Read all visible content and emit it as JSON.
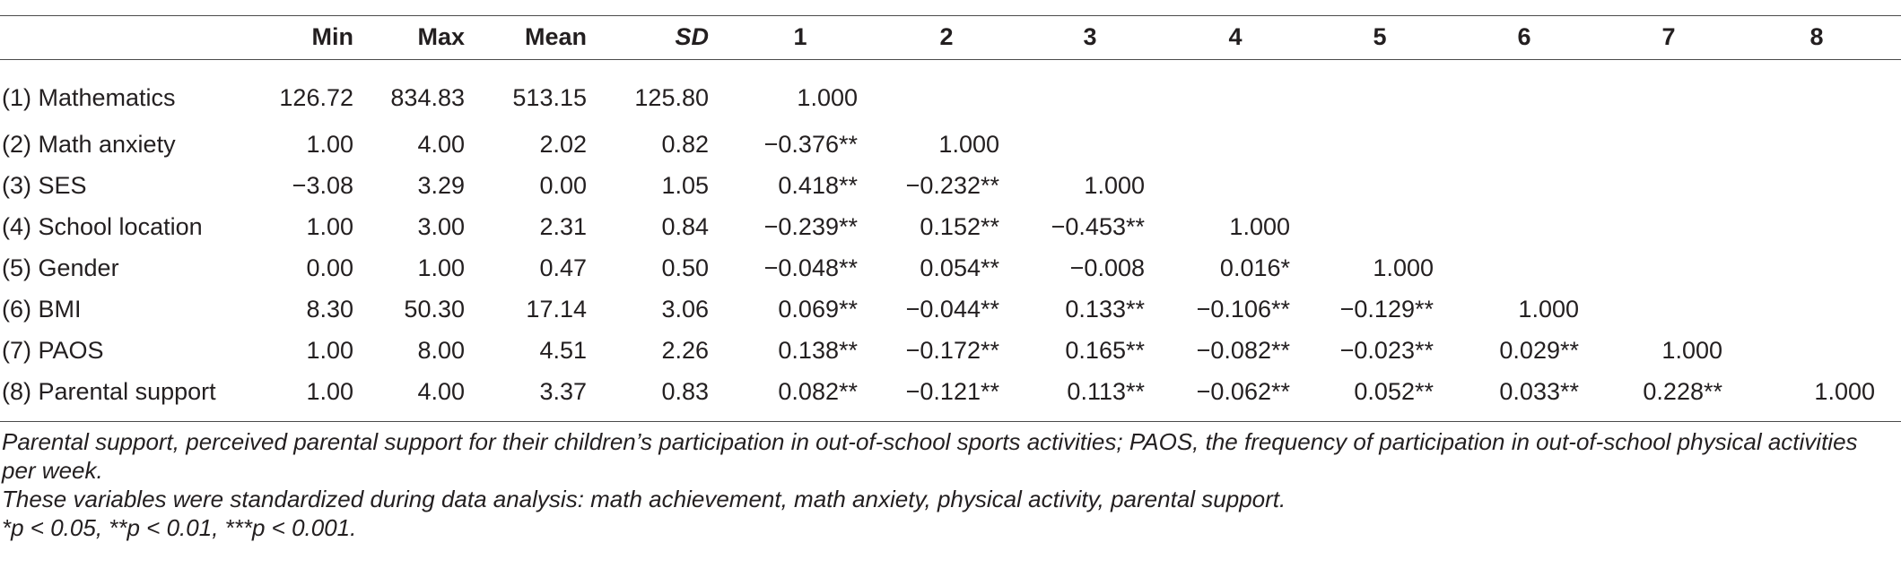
{
  "table": {
    "headers": [
      "",
      "Min",
      "Max",
      "Mean",
      "SD",
      "1",
      "2",
      "3",
      "4",
      "5",
      "6",
      "7",
      "8"
    ],
    "rows": [
      [
        "(1) Mathematics",
        "126.72",
        "834.83",
        "513.15",
        "125.80",
        "1.000",
        "",
        "",
        "",
        "",
        "",
        "",
        ""
      ],
      [
        "(2) Math anxiety",
        "1.00",
        "4.00",
        "2.02",
        "0.82",
        "−0.376**",
        "1.000",
        "",
        "",
        "",
        "",
        "",
        ""
      ],
      [
        "(3) SES",
        "−3.08",
        "3.29",
        "0.00",
        "1.05",
        "0.418**",
        "−0.232**",
        "1.000",
        "",
        "",
        "",
        "",
        ""
      ],
      [
        "(4) School location",
        "1.00",
        "3.00",
        "2.31",
        "0.84",
        "−0.239**",
        "0.152**",
        "−0.453**",
        "1.000",
        "",
        "",
        "",
        ""
      ],
      [
        "(5) Gender",
        "0.00",
        "1.00",
        "0.47",
        "0.50",
        "−0.048**",
        "0.054**",
        "−0.008",
        "0.016*",
        "1.000",
        "",
        "",
        ""
      ],
      [
        "(6) BMI",
        "8.30",
        "50.30",
        "17.14",
        "3.06",
        "0.069**",
        "−0.044**",
        "0.133**",
        "−0.106**",
        "−0.129**",
        "1.000",
        "",
        ""
      ],
      [
        "(7) PAOS",
        "1.00",
        "8.00",
        "4.51",
        "2.26",
        "0.138**",
        "−0.172**",
        "0.165**",
        "−0.082**",
        "−0.023**",
        "0.029**",
        "1.000",
        ""
      ],
      [
        "(8) Parental support",
        "1.00",
        "4.00",
        "3.37",
        "0.83",
        "0.082**",
        "−0.121**",
        "0.113**",
        "−0.062**",
        "0.052**",
        "0.033**",
        "0.228**",
        "1.000"
      ]
    ]
  },
  "notes": {
    "note1": "Parental support, perceived parental support for their children’s participation in out-of-school sports activities; PAOS, the frequency of participation in out-of-school physical activities per week.",
    "note2": "These variables were standardized during data analysis: math achievement, math anxiety, physical activity, parental support.",
    "note3": "*p < 0.05, **p < 0.01, ***p < 0.001."
  }
}
